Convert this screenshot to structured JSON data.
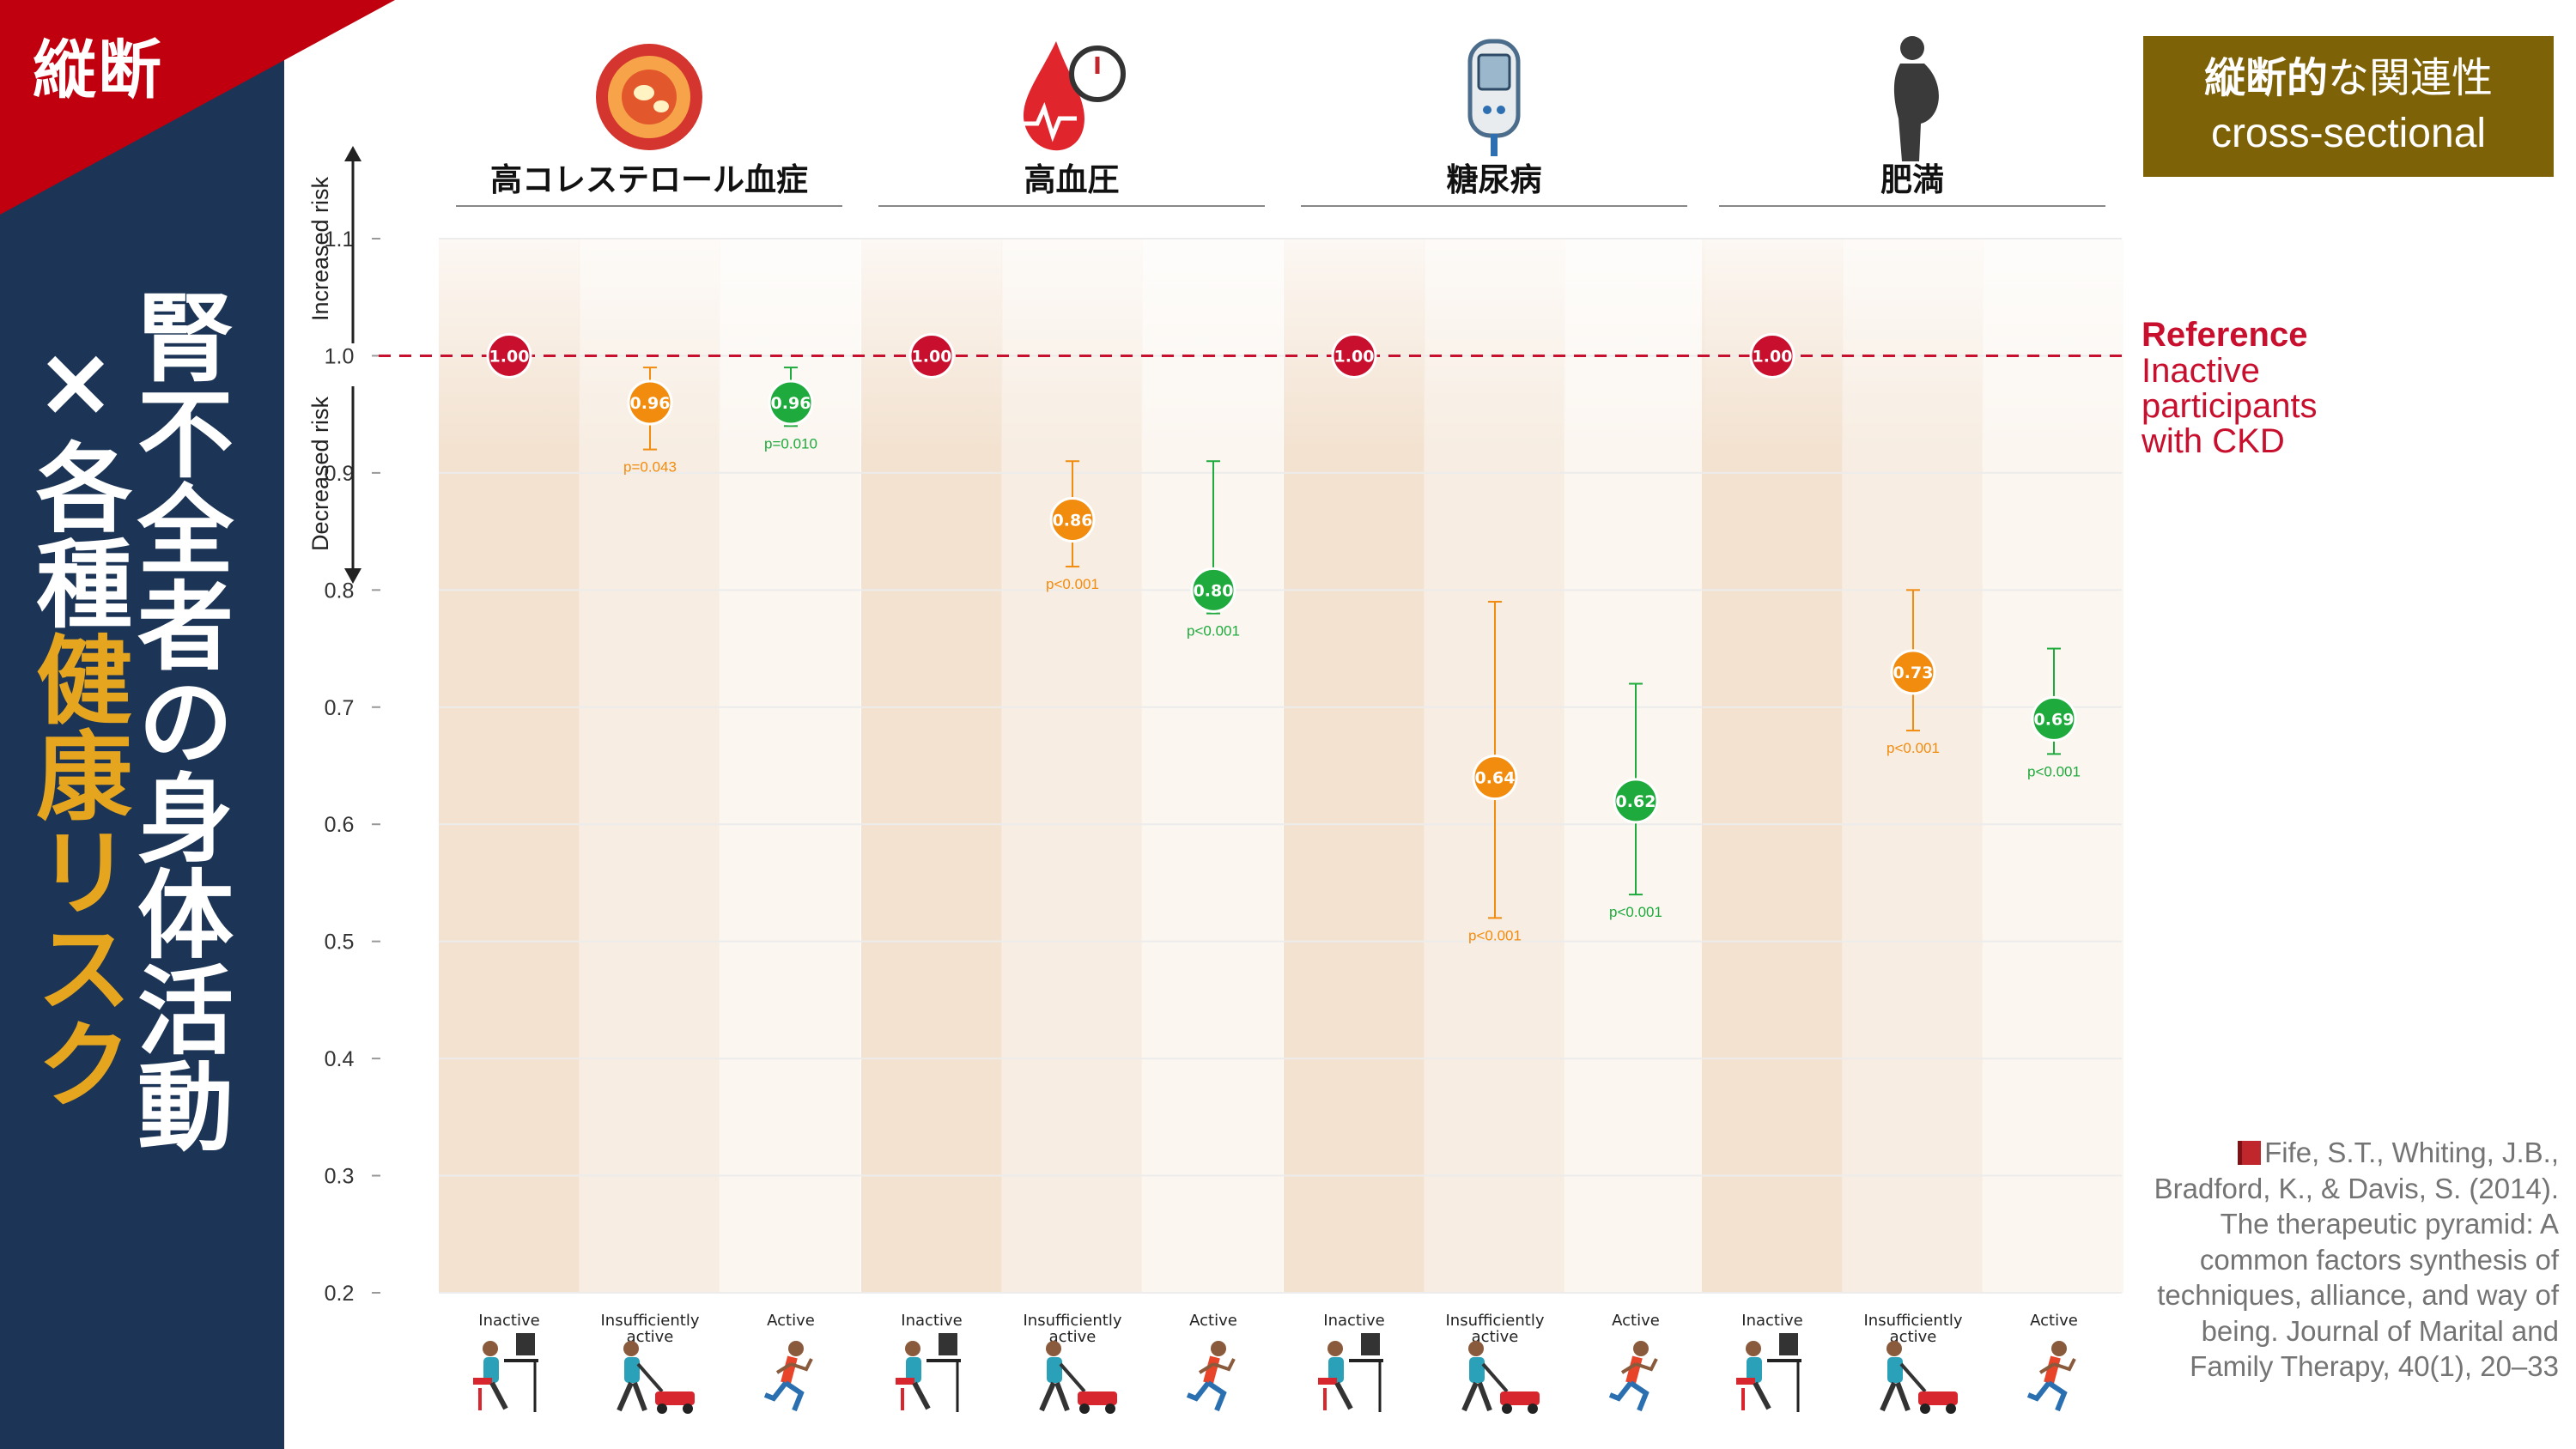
{
  "corner_label": "縦断",
  "sidebar_title": {
    "line1": "腎不全者の身体活動",
    "line2_prefix": "×各種",
    "line2_highlight": "健康リスク"
  },
  "badge": {
    "line1_bold": "縦断的",
    "line1_rest": "な関連性",
    "line2": "cross-sectional"
  },
  "reference_note": {
    "title": "Reference",
    "text": "Inactive participants with CKD"
  },
  "citation": "Fife, S.T., Whiting, J.B., Bradford, K., & Davis, S. (2014). The therapeutic pyramid: A common factors synthesis of techniques, alliance, and way of being. Journal of Marital and Family Therapy, 40(1), 20–33",
  "colors": {
    "inactive": "#c8102e",
    "insufficient": "#f28c0f",
    "active": "#1eaa3c",
    "sidebar": "#1c3556",
    "accent_gold": "#e6a51e",
    "badge": "#7e6207"
  },
  "icons": [
    "cholesterol-icon",
    "blood-pressure-icon",
    "glucose-meter-icon",
    "obesity-icon",
    "desk-worker-icon",
    "lawn-mower-icon",
    "runner-icon"
  ],
  "chart_data": {
    "type": "scatter",
    "y_axis_label_up": "Increased risk",
    "y_axis_label_down": "Decreased risk",
    "ylim": [
      0.2,
      1.1
    ],
    "yticks": [
      "0.2",
      "0.3",
      "0.4",
      "0.5",
      "0.6",
      "0.7",
      "0.8",
      "0.9",
      "1.0",
      "1.1"
    ],
    "reference_line": 1.0,
    "activity_levels": [
      "Inactive",
      "Insufficiently active",
      "Active"
    ],
    "groups": [
      {
        "name": "高コレステロール血症",
        "icon": "cholesterol-icon",
        "points": [
          {
            "level": "Inactive",
            "value": 1.0,
            "label": "1.00"
          },
          {
            "level": "Insufficiently active",
            "value": 0.96,
            "label": "0.96",
            "ci": [
              0.92,
              0.99
            ],
            "p": "p=0.043"
          },
          {
            "level": "Active",
            "value": 0.96,
            "label": "0.96",
            "ci": [
              0.94,
              0.99
            ],
            "p": "p=0.010"
          }
        ]
      },
      {
        "name": "高血圧",
        "icon": "blood-pressure-icon",
        "points": [
          {
            "level": "Inactive",
            "value": 1.0,
            "label": "1.00"
          },
          {
            "level": "Insufficiently active",
            "value": 0.86,
            "label": "0.86",
            "ci": [
              0.82,
              0.91
            ],
            "p": "p<0.001"
          },
          {
            "level": "Active",
            "value": 0.8,
            "label": "0.80",
            "ci": [
              0.78,
              0.91
            ],
            "p": "p<0.001"
          }
        ]
      },
      {
        "name": "糖尿病",
        "icon": "glucose-meter-icon",
        "points": [
          {
            "level": "Inactive",
            "value": 1.0,
            "label": "1.00"
          },
          {
            "level": "Insufficiently active",
            "value": 0.64,
            "label": "0.64",
            "ci": [
              0.52,
              0.79
            ],
            "p": "p<0.001"
          },
          {
            "level": "Active",
            "value": 0.62,
            "label": "0.62",
            "ci": [
              0.54,
              0.72
            ],
            "p": "p<0.001"
          }
        ]
      },
      {
        "name": "肥満",
        "icon": "obesity-icon",
        "points": [
          {
            "level": "Inactive",
            "value": 1.0,
            "label": "1.00"
          },
          {
            "level": "Insufficiently active",
            "value": 0.73,
            "label": "0.73",
            "ci": [
              0.68,
              0.8
            ],
            "p": "p<0.001"
          },
          {
            "level": "Active",
            "value": 0.69,
            "label": "0.69",
            "ci": [
              0.66,
              0.75
            ],
            "p": "p<0.001"
          }
        ]
      }
    ],
    "grid": true,
    "legend": "none"
  }
}
